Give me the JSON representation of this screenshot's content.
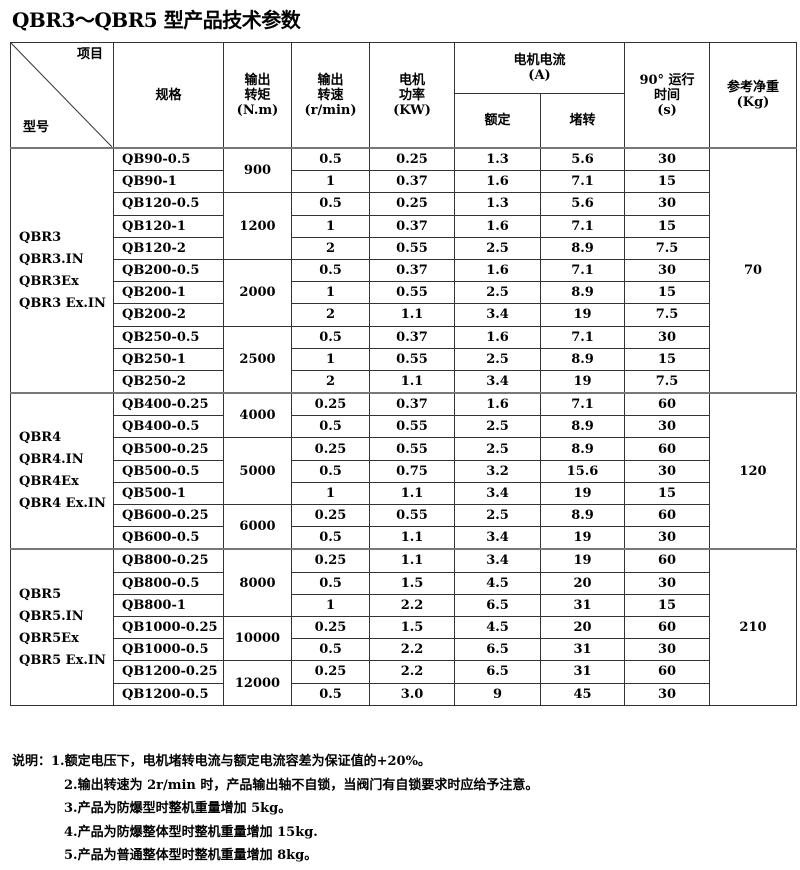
{
  "title": "QBR3～QBR5 型产品技术参数",
  "header": {
    "item": "项目",
    "model": "型号",
    "spec": "规格",
    "torque": [
      "输出",
      "转矩",
      "(N.m)"
    ],
    "speed": [
      "输出",
      "转速",
      "(r/min)"
    ],
    "power": [
      "电机",
      "功率",
      "(KW)"
    ],
    "current": [
      "电机电流",
      "(A)"
    ],
    "rated": "额定",
    "stall": "堵转",
    "time": [
      "90° 运行",
      "时间",
      "(s)"
    ],
    "weight": [
      "参考净重",
      "(Kg)"
    ]
  },
  "groups": [
    {
      "models": [
        "QBR3",
        "QBR3.IN",
        "QBR3Ex",
        "QBR3 Ex.IN"
      ],
      "weight": "70",
      "torques": [
        {
          "torque": "900",
          "rows": [
            [
              "QB90-0.5",
              "0.5",
              "0.25",
              "1.3",
              "5.6",
              "30"
            ],
            [
              "QB90-1",
              "1",
              "0.37",
              "1.6",
              "7.1",
              "15"
            ]
          ]
        },
        {
          "torque": "1200",
          "rows": [
            [
              "QB120-0.5",
              "0.5",
              "0.25",
              "1.3",
              "5.6",
              "30"
            ],
            [
              "QB120-1",
              "1",
              "0.37",
              "1.6",
              "7.1",
              "15"
            ],
            [
              "QB120-2",
              "2",
              "0.55",
              "2.5",
              "8.9",
              "7.5"
            ]
          ]
        },
        {
          "torque": "2000",
          "rows": [
            [
              "QB200-0.5",
              "0.5",
              "0.37",
              "1.6",
              "7.1",
              "30"
            ],
            [
              "QB200-1",
              "1",
              "0.55",
              "2.5",
              "8.9",
              "15"
            ],
            [
              "QB200-2",
              "2",
              "1.1",
              "3.4",
              "19",
              "7.5"
            ]
          ]
        },
        {
          "torque": "2500",
          "rows": [
            [
              "QB250-0.5",
              "0.5",
              "0.37",
              "1.6",
              "7.1",
              "30"
            ],
            [
              "QB250-1",
              "1",
              "0.55",
              "2.5",
              "8.9",
              "15"
            ],
            [
              "QB250-2",
              "2",
              "1.1",
              "3.4",
              "19",
              "7.5"
            ]
          ]
        }
      ]
    },
    {
      "models": [
        "QBR4",
        "QBR4.IN",
        "QBR4Ex",
        "QBR4 Ex.IN"
      ],
      "weight": "120",
      "torques": [
        {
          "torque": "4000",
          "rows": [
            [
              "QB400-0.25",
              "0.25",
              "0.37",
              "1.6",
              "7.1",
              "60"
            ],
            [
              "QB400-0.5",
              "0.5",
              "0.55",
              "2.5",
              "8.9",
              "30"
            ]
          ]
        },
        {
          "torque": "5000",
          "rows": [
            [
              "QB500-0.25",
              "0.25",
              "0.55",
              "2.5",
              "8.9",
              "60"
            ],
            [
              "QB500-0.5",
              "0.5",
              "0.75",
              "3.2",
              "15.6",
              "30"
            ],
            [
              "QB500-1",
              "1",
              "1.1",
              "3.4",
              "19",
              "15"
            ]
          ]
        },
        {
          "torque": "6000",
          "rows": [
            [
              "QB600-0.25",
              "0.25",
              "0.55",
              "2.5",
              "8.9",
              "60"
            ],
            [
              "QB600-0.5",
              "0.5",
              "1.1",
              "3.4",
              "19",
              "30"
            ]
          ]
        }
      ]
    },
    {
      "models": [
        "QBR5",
        "QBR5.IN",
        "QBR5Ex",
        "QBR5 Ex.IN"
      ],
      "weight": "210",
      "torques": [
        {
          "torque": "8000",
          "rows": [
            [
              "QB800-0.25",
              "0.25",
              "1.1",
              "3.4",
              "19",
              "60"
            ],
            [
              "QB800-0.5",
              "0.5",
              "1.5",
              "4.5",
              "20",
              "30"
            ],
            [
              "QB800-1",
              "1",
              "2.2",
              "6.5",
              "31",
              "15"
            ]
          ]
        },
        {
          "torque": "10000",
          "rows": [
            [
              "QB1000-0.25",
              "0.25",
              "1.5",
              "4.5",
              "20",
              "60"
            ],
            [
              "QB1000-0.5",
              "0.5",
              "2.2",
              "6.5",
              "31",
              "30"
            ]
          ]
        },
        {
          "torque": "12000",
          "rows": [
            [
              "QB1200-0.25",
              "0.25",
              "2.2",
              "6.5",
              "31",
              "60"
            ],
            [
              "QB1200-0.5",
              "0.5",
              "3.0",
              "9",
              "45",
              "30"
            ]
          ]
        }
      ]
    }
  ],
  "notes": {
    "label": "说明：",
    "items": [
      "1.额定电压下，电机堵转电流与额定电流容差为保证值的+20%。",
      "2.输出转速为 2r/min 时，产品输出轴不自锁，当阀门有自锁要求时应给予注意。",
      "3.产品为防爆型时整机重量增加 5kg。",
      "4.产品为防爆整体型时整机重量增加 15kg.",
      "5.产品为普通整体型时整机重量增加 8kg。"
    ]
  }
}
